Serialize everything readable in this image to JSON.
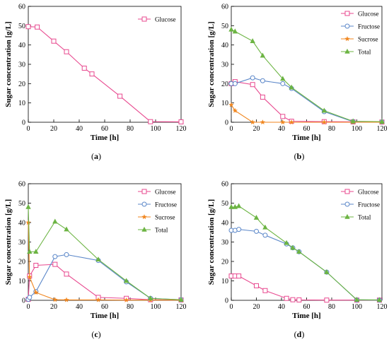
{
  "colors": {
    "glucose": "#e8498f",
    "fructose": "#5b87c9",
    "sucrose": "#f0861f",
    "total": "#6cb443",
    "axis": "#000000"
  },
  "chart_data": [
    {
      "panel_label": "(a)",
      "type": "line",
      "title": "",
      "xlabel": "Time [h]",
      "ylabel": "Sugar concentration [g/L]",
      "xlim": [
        0,
        120
      ],
      "ylim": [
        0,
        60
      ],
      "xticks": [
        0,
        20,
        40,
        60,
        80,
        100,
        120
      ],
      "yticks": [
        0,
        10,
        20,
        30,
        40,
        50,
        60
      ],
      "grid": false,
      "legend_position": "top-right",
      "series": [
        {
          "name": "Glucose",
          "color_key": "glucose",
          "marker": "square-open",
          "x": [
            0,
            7,
            20,
            30,
            44,
            50,
            72,
            96,
            120
          ],
          "y": [
            49.5,
            49.3,
            42.0,
            36.5,
            28.0,
            25.0,
            13.5,
            0.3,
            0.2
          ]
        }
      ]
    },
    {
      "panel_label": "(b)",
      "type": "line",
      "title": "",
      "xlabel": "Time [h]",
      "ylabel": "Sugar concentration [g/L]",
      "xlim": [
        0,
        120
      ],
      "ylim": [
        0,
        60
      ],
      "xticks": [
        0,
        20,
        40,
        60,
        80,
        100,
        120
      ],
      "yticks": [
        0,
        10,
        20,
        30,
        40,
        50,
        60
      ],
      "grid": false,
      "legend_position": "top-right",
      "series": [
        {
          "name": "Glucose",
          "color_key": "glucose",
          "marker": "square-open",
          "x": [
            0,
            3,
            17,
            25,
            41,
            48,
            74,
            97,
            120
          ],
          "y": [
            20.0,
            21.0,
            19.5,
            13.0,
            3.0,
            0.5,
            0.3,
            0.2,
            0.1
          ]
        },
        {
          "name": "Fructose",
          "color_key": "fructose",
          "marker": "circle-open",
          "x": [
            0,
            3,
            17,
            25,
            41,
            48,
            74,
            97,
            120
          ],
          "y": [
            20.0,
            20.0,
            23.0,
            21.5,
            20.0,
            17.5,
            5.5,
            0.3,
            0.2
          ]
        },
        {
          "name": "Sucrose",
          "color_key": "sucrose",
          "marker": "star",
          "x": [
            0,
            3,
            17,
            25,
            41,
            48,
            74,
            97,
            120
          ],
          "y": [
            9.0,
            6.0,
            0.0,
            0.0,
            0.0,
            0.0,
            0.0,
            0.0,
            0.0
          ]
        },
        {
          "name": "Total",
          "color_key": "total",
          "marker": "triangle",
          "x": [
            0,
            3,
            17,
            25,
            41,
            48,
            74,
            97,
            120
          ],
          "y": [
            48.0,
            47.0,
            42.0,
            34.5,
            22.5,
            18.0,
            6.0,
            0.5,
            0.3
          ]
        }
      ]
    },
    {
      "panel_label": "(c)",
      "type": "line",
      "title": "",
      "xlabel": "Time [h]",
      "ylabel": "Sugar concentration [g/L]",
      "xlim": [
        0,
        120
      ],
      "ylim": [
        0,
        60
      ],
      "xticks": [
        0,
        20,
        40,
        60,
        80,
        100,
        120
      ],
      "yticks": [
        0,
        10,
        20,
        30,
        40,
        50,
        60
      ],
      "grid": false,
      "legend_position": "top-right",
      "series": [
        {
          "name": "Glucose",
          "color_key": "glucose",
          "marker": "square-open",
          "x": [
            0,
            1,
            6,
            21,
            30,
            55,
            77,
            96,
            120
          ],
          "y": [
            0.5,
            12.5,
            18.0,
            18.5,
            13.5,
            1.5,
            1.0,
            0.3,
            0.2
          ]
        },
        {
          "name": "Fructose",
          "color_key": "fructose",
          "marker": "circle-open",
          "x": [
            0,
            1,
            6,
            21,
            30,
            55,
            77,
            96,
            120
          ],
          "y": [
            0.5,
            1.5,
            4.5,
            22.5,
            23.5,
            20.5,
            9.5,
            1.0,
            0.3
          ]
        },
        {
          "name": "Sucrose",
          "color_key": "sucrose",
          "marker": "star",
          "x": [
            0,
            1,
            6,
            21,
            30,
            55,
            77,
            96,
            120
          ],
          "y": [
            40.0,
            12.0,
            4.0,
            0.3,
            0.2,
            0.2,
            0.1,
            0.1,
            0.1
          ]
        },
        {
          "name": "Total",
          "color_key": "total",
          "marker": "triangle",
          "x": [
            0,
            1,
            6,
            21,
            30,
            55,
            77,
            96,
            120
          ],
          "y": [
            48.0,
            25.0,
            25.0,
            40.5,
            36.5,
            21.0,
            10.0,
            1.0,
            0.3
          ]
        }
      ]
    },
    {
      "panel_label": "(d)",
      "type": "line",
      "title": "",
      "xlabel": "Time [h]",
      "ylabel": "Sugar concentration [g/L]",
      "xlim": [
        0,
        120
      ],
      "ylim": [
        0,
        60
      ],
      "xticks": [
        0,
        20,
        40,
        60,
        80,
        100,
        120
      ],
      "yticks": [
        0,
        10,
        20,
        30,
        40,
        50,
        60
      ],
      "grid": false,
      "legend_position": "top-right",
      "series": [
        {
          "name": "Glucose",
          "color_key": "glucose",
          "marker": "square-open",
          "x": [
            0,
            3,
            6,
            20,
            27,
            44,
            49,
            54,
            76,
            100,
            118
          ],
          "y": [
            12.5,
            12.5,
            12.5,
            7.5,
            5.0,
            1.0,
            0.3,
            0.2,
            0.1,
            0.1,
            0.1
          ]
        },
        {
          "name": "Fructose",
          "color_key": "fructose",
          "marker": "circle-open",
          "x": [
            0,
            3,
            6,
            20,
            27,
            44,
            49,
            54,
            76,
            100,
            118
          ],
          "y": [
            36.0,
            36.0,
            36.5,
            35.5,
            33.5,
            29.0,
            27.0,
            25.0,
            14.5,
            0.2,
            0.1
          ]
        },
        {
          "name": "Total",
          "color_key": "total",
          "marker": "triangle",
          "x": [
            0,
            3,
            6,
            20,
            27,
            44,
            49,
            54,
            76,
            100,
            118
          ],
          "y": [
            48.0,
            48.0,
            48.5,
            42.5,
            37.5,
            29.5,
            27.0,
            25.0,
            14.5,
            0.3,
            0.2
          ]
        }
      ]
    }
  ]
}
